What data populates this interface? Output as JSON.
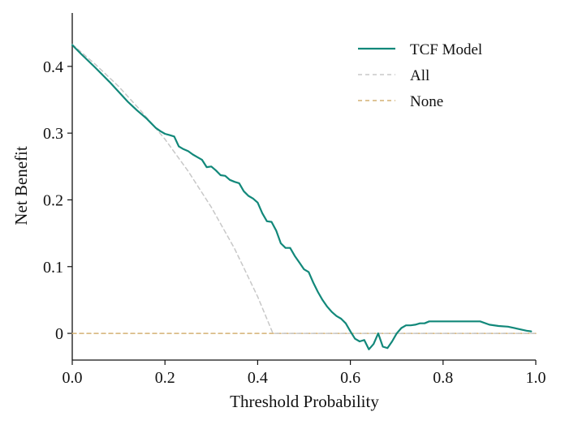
{
  "chart_data": {
    "type": "line",
    "title": "",
    "xlabel": "Threshold Probability",
    "ylabel": "Net Benefit",
    "xlim": [
      0.0,
      1.0
    ],
    "ylim": [
      -0.04,
      0.48
    ],
    "xticks": [
      0.0,
      0.2,
      0.4,
      0.6,
      0.8,
      1.0
    ],
    "xtick_labels": [
      "0.0",
      "0.2",
      "0.4",
      "0.6",
      "0.8",
      "1.0"
    ],
    "yticks": [
      0,
      0.1,
      0.2,
      0.3,
      0.4
    ],
    "ytick_labels": [
      "0",
      "0.1",
      "0.2",
      "0.3",
      "0.4"
    ],
    "grid": false,
    "legend_position": "top-right",
    "series": [
      {
        "name": "TCF Model",
        "style": "solid",
        "color": "#12887a",
        "x": [
          0.0,
          0.02,
          0.05,
          0.08,
          0.1,
          0.12,
          0.14,
          0.16,
          0.17,
          0.18,
          0.19,
          0.2,
          0.21,
          0.22,
          0.23,
          0.24,
          0.25,
          0.26,
          0.27,
          0.28,
          0.29,
          0.3,
          0.31,
          0.32,
          0.33,
          0.34,
          0.35,
          0.36,
          0.37,
          0.38,
          0.39,
          0.4,
          0.41,
          0.42,
          0.43,
          0.44,
          0.45,
          0.46,
          0.47,
          0.48,
          0.49,
          0.5,
          0.51,
          0.52,
          0.53,
          0.54,
          0.55,
          0.56,
          0.57,
          0.58,
          0.59,
          0.6,
          0.61,
          0.62,
          0.63,
          0.64,
          0.65,
          0.66,
          0.67,
          0.68,
          0.69,
          0.7,
          0.71,
          0.72,
          0.73,
          0.74,
          0.75,
          0.76,
          0.77,
          0.78,
          0.8,
          0.82,
          0.84,
          0.86,
          0.88,
          0.9,
          0.92,
          0.94,
          0.96,
          0.98,
          0.99
        ],
        "y": [
          0.432,
          0.418,
          0.398,
          0.377,
          0.362,
          0.347,
          0.334,
          0.322,
          0.315,
          0.308,
          0.303,
          0.299,
          0.297,
          0.295,
          0.28,
          0.276,
          0.273,
          0.268,
          0.264,
          0.26,
          0.249,
          0.25,
          0.244,
          0.237,
          0.236,
          0.23,
          0.227,
          0.225,
          0.213,
          0.206,
          0.202,
          0.196,
          0.18,
          0.168,
          0.167,
          0.154,
          0.135,
          0.128,
          0.128,
          0.116,
          0.106,
          0.096,
          0.092,
          0.076,
          0.062,
          0.05,
          0.04,
          0.032,
          0.026,
          0.022,
          0.015,
          0.003,
          -0.008,
          -0.012,
          -0.01,
          -0.024,
          -0.016,
          0.0,
          -0.02,
          -0.022,
          -0.012,
          0.0,
          0.008,
          0.012,
          0.012,
          0.013,
          0.015,
          0.015,
          0.018,
          0.018,
          0.018,
          0.018,
          0.018,
          0.018,
          0.018,
          0.013,
          0.011,
          0.01,
          0.007,
          0.004,
          0.003
        ]
      },
      {
        "name": "All",
        "style": "dashed",
        "color": "#c8c8c8",
        "x": [
          0.0,
          0.05,
          0.1,
          0.15,
          0.2,
          0.25,
          0.3,
          0.35,
          0.4,
          0.433,
          1.0
        ],
        "y": [
          0.433,
          0.403,
          0.37,
          0.332,
          0.291,
          0.243,
          0.189,
          0.127,
          0.055,
          0.0,
          0.0
        ]
      },
      {
        "name": "None",
        "style": "dashed",
        "color": "#d4b173",
        "x": [
          0.0,
          1.0
        ],
        "y": [
          0.0,
          0.0
        ]
      }
    ]
  }
}
